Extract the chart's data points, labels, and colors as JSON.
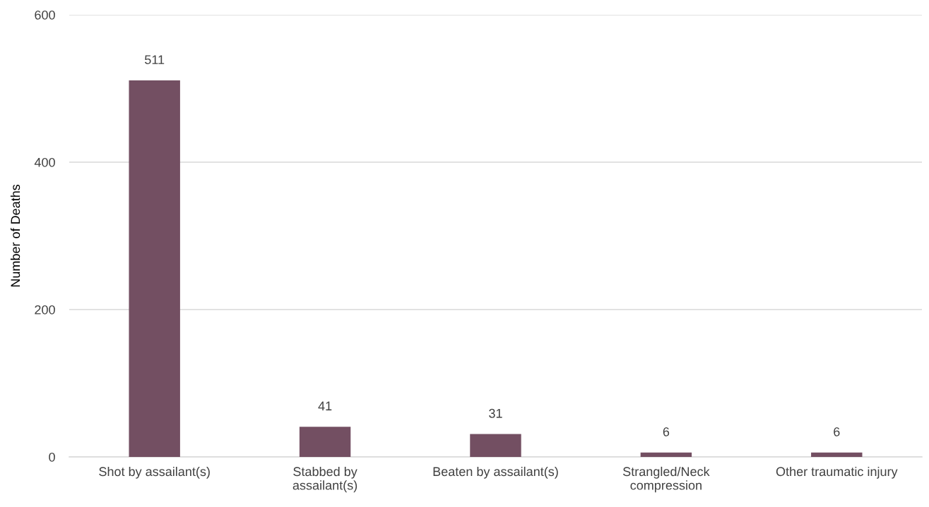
{
  "chart_data": {
    "type": "bar",
    "ylabel": "Number of Deaths",
    "categories": [
      "Shot by assailant(s)",
      "Stabbed by\nassailant(s)",
      "Beaten by assailant(s)",
      "Strangled/Neck\ncompression",
      "Other traumatic injury"
    ],
    "values": [
      511,
      41,
      31,
      6,
      6
    ],
    "color": "#734f62",
    "ylim": [
      0,
      600
    ],
    "yticks": [
      0,
      200,
      400,
      600
    ],
    "grid": "y",
    "data_labels": true,
    "legend": false
  }
}
